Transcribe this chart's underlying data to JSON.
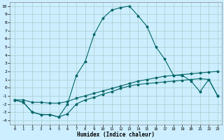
{
  "xlabel": "Humidex (Indice chaleur)",
  "bg_color": "#cceeff",
  "grid_color": "#aacccc",
  "line_color": "#006666",
  "xlim": [
    -0.5,
    23.5
  ],
  "ylim": [
    -4.5,
    10.5
  ],
  "xticks": [
    0,
    1,
    2,
    3,
    4,
    5,
    6,
    7,
    8,
    9,
    10,
    11,
    12,
    13,
    14,
    15,
    16,
    17,
    18,
    19,
    20,
    21,
    22,
    23
  ],
  "yticks": [
    -4,
    -3,
    -2,
    -1,
    0,
    1,
    2,
    3,
    4,
    5,
    6,
    7,
    8,
    9,
    10
  ],
  "line1_x": [
    0,
    1,
    2,
    3,
    4,
    5,
    6,
    7,
    8,
    9,
    10,
    11,
    12,
    13,
    14,
    15,
    16,
    17,
    18,
    19,
    20,
    21,
    22,
    23
  ],
  "line1_y": [
    -1.5,
    -1.8,
    -3.0,
    -3.3,
    -3.3,
    -3.6,
    -3.2,
    -2.0,
    -1.5,
    -1.2,
    -0.8,
    -0.5,
    -0.1,
    0.2,
    0.4,
    0.5,
    0.6,
    0.7,
    0.8,
    0.9,
    1.0,
    1.1,
    1.0,
    -1.0
  ],
  "line2_x": [
    0,
    1,
    2,
    3,
    4,
    5,
    6,
    7,
    8,
    9,
    10,
    11,
    12,
    13,
    14,
    15,
    16,
    17,
    18,
    19,
    20,
    21,
    22,
    23
  ],
  "line2_y": [
    -1.5,
    -1.5,
    -1.8,
    -1.8,
    -1.9,
    -1.9,
    -1.7,
    -1.3,
    -1.0,
    -0.7,
    -0.4,
    -0.1,
    0.2,
    0.5,
    0.8,
    1.0,
    1.2,
    1.4,
    1.5,
    1.6,
    1.7,
    1.8,
    1.9,
    2.0
  ],
  "line3_x": [
    0,
    1,
    2,
    3,
    4,
    5,
    6,
    7,
    8,
    9,
    10,
    11,
    12,
    13,
    14,
    15,
    16,
    17,
    18,
    19,
    20,
    21,
    22,
    23
  ],
  "line3_y": [
    -1.5,
    -1.8,
    -3.0,
    -3.3,
    -3.3,
    -3.6,
    -2.0,
    1.5,
    3.2,
    6.5,
    8.5,
    9.5,
    9.8,
    10.0,
    8.8,
    7.5,
    5.0,
    3.5,
    1.5,
    1.5,
    0.8,
    -0.5,
    1.0,
    -1.0
  ]
}
